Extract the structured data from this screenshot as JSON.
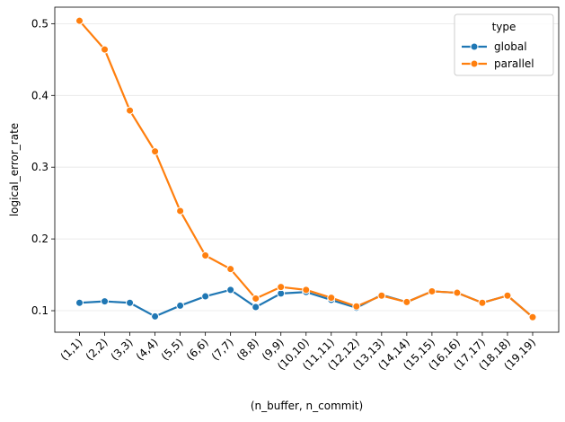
{
  "chart_data": {
    "type": "line",
    "title": "",
    "xlabel": "(n_buffer, n_commit)",
    "ylabel": "logical_error_rate",
    "categories": [
      "(1,1)",
      "(2,2)",
      "(3,3)",
      "(4,4)",
      "(5,5)",
      "(6,6)",
      "(7,7)",
      "(8,8)",
      "(9,9)",
      "(10,10)",
      "(11,11)",
      "(12,12)",
      "(13,13)",
      "(14,14)",
      "(15,15)",
      "(16,16)",
      "(17,17)",
      "(18,18)",
      "(19,19)"
    ],
    "yticks": [
      0.1,
      0.2,
      0.3,
      0.4,
      0.5
    ],
    "ylim": [
      0.07,
      0.523
    ],
    "grid": "horizontal",
    "legend": {
      "title": "type",
      "placement": "top-right"
    },
    "series": [
      {
        "name": "global",
        "color": "#1f77b4",
        "values": [
          0.111,
          0.113,
          0.111,
          0.092,
          0.107,
          0.12,
          0.129,
          0.105,
          0.124,
          0.126,
          0.115,
          0.104,
          0.122,
          0.112,
          0.127,
          0.125,
          0.111,
          0.121,
          0.091
        ]
      },
      {
        "name": "parallel",
        "color": "#ff7f0e",
        "values": [
          0.504,
          0.464,
          0.379,
          0.322,
          0.239,
          0.177,
          0.158,
          0.117,
          0.133,
          0.129,
          0.118,
          0.106,
          0.121,
          0.112,
          0.127,
          0.125,
          0.111,
          0.121,
          0.091
        ]
      }
    ]
  }
}
